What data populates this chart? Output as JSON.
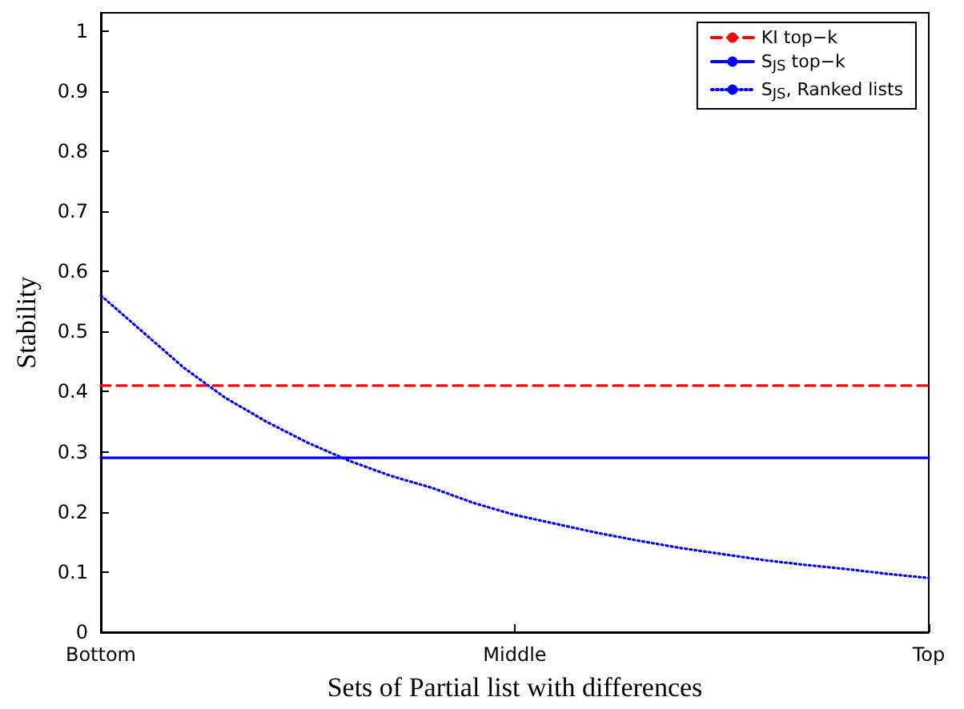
{
  "chart_data": {
    "type": "line",
    "xlabel": "Sets of Partial list with differences",
    "ylabel": "Stability",
    "categories": [
      "Bottom",
      null,
      null,
      null,
      null,
      null,
      null,
      null,
      null,
      null,
      "Middle",
      null,
      null,
      null,
      null,
      null,
      null,
      null,
      null,
      null,
      "Top"
    ],
    "ylim": [
      0,
      1.03
    ],
    "yticks": [
      0,
      0.1,
      0.2,
      0.3,
      0.4,
      0.5,
      0.6,
      0.7,
      0.8,
      0.9,
      1
    ],
    "grid": false,
    "legend": "top right",
    "marker": "none",
    "series": [
      {
        "name": "KI top−k",
        "color": "#ff0000",
        "line_style": "dashed",
        "values": [
          0.41,
          0.41,
          0.41,
          0.41,
          0.41,
          0.41,
          0.41,
          0.41,
          0.41,
          0.41,
          0.41,
          0.41,
          0.41,
          0.41,
          0.41,
          0.41,
          0.41,
          0.41,
          0.41,
          0.41,
          0.41
        ]
      },
      {
        "name": "S$_{JS}$ top−k",
        "color": "#0000ff",
        "line_style": "solid",
        "values": [
          0.29,
          0.29,
          0.29,
          0.29,
          0.29,
          0.29,
          0.29,
          0.29,
          0.29,
          0.29,
          0.29,
          0.29,
          0.29,
          0.29,
          0.29,
          0.29,
          0.29,
          0.29,
          0.29,
          0.29,
          0.29
        ]
      },
      {
        "name": "S$_{JS}$, Ranked lists",
        "color": "#0000ff",
        "line_style": "dotted",
        "values": [
          0.56,
          0.5,
          0.44,
          0.39,
          0.35,
          0.315,
          0.285,
          0.26,
          0.24,
          0.215,
          0.195,
          0.18,
          0.165,
          0.152,
          0.14,
          0.13,
          0.12,
          0.112,
          0.105,
          0.097,
          0.09
        ]
      }
    ]
  }
}
